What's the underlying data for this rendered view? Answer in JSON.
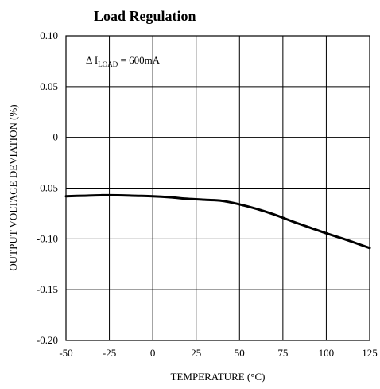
{
  "chart_data": {
    "type": "line",
    "title": "Load Regulation",
    "xlabel": "TEMPERATURE (°C)",
    "ylabel": "OUTPUT VOLTAGE DEVIATION (%)",
    "xlim": [
      -50,
      125
    ],
    "ylim": [
      -0.2,
      0.1
    ],
    "x_ticks": [
      -50,
      -25,
      0,
      25,
      50,
      75,
      100,
      125
    ],
    "x_tick_labels": [
      "-50",
      "-25",
      "0",
      "25",
      "50",
      "75",
      "100",
      "125"
    ],
    "y_ticks": [
      0.1,
      0.05,
      0,
      -0.05,
      -0.1,
      -0.15,
      -0.2
    ],
    "y_tick_labels": [
      "0.10",
      "0.05",
      "0",
      "-0.05",
      "-0.10",
      "-0.15",
      "-0.20"
    ],
    "grid": true,
    "annotation": {
      "prefix": "Δ I",
      "subscript": "LOAD",
      "suffix": " = 600mA"
    },
    "series": [
      {
        "x": [
          -50,
          -40,
          -30,
          -20,
          -10,
          0,
          10,
          20,
          30,
          40,
          50,
          60,
          70,
          80,
          90,
          100,
          110,
          120,
          125
        ],
        "y": [
          -0.058,
          -0.0575,
          -0.057,
          -0.057,
          -0.0575,
          -0.058,
          -0.059,
          -0.0605,
          -0.0615,
          -0.0625,
          -0.066,
          -0.0705,
          -0.076,
          -0.0825,
          -0.0885,
          -0.0945,
          -0.1,
          -0.106,
          -0.109
        ]
      }
    ]
  }
}
